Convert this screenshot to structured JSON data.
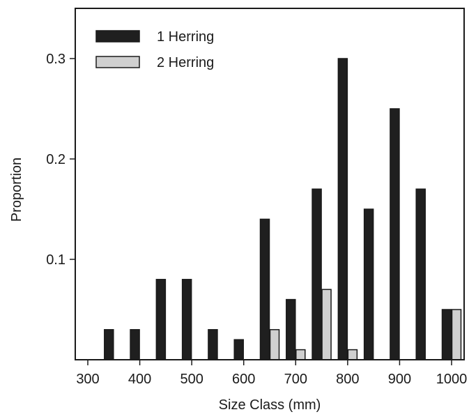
{
  "chart_data": {
    "type": "bar",
    "categories": [
      "350",
      "400",
      "450",
      "500",
      "550",
      "600",
      "650",
      "700",
      "750",
      "800",
      "850",
      "900",
      "950",
      "1000"
    ],
    "series": [
      {
        "name": "1 Herring",
        "color": "#1f1f1f",
        "values": [
          0.03,
          0.03,
          0.08,
          0.08,
          0.03,
          0.02,
          0.14,
          0.06,
          0.17,
          0.3,
          0.15,
          0.25,
          0.17,
          0.05
        ]
      },
      {
        "name": "2 Herring",
        "color": "#d0d0d0",
        "values": [
          0,
          0,
          0,
          0,
          0,
          0,
          0.03,
          0.01,
          0.07,
          0.01,
          0,
          0,
          0,
          0.05
        ]
      }
    ],
    "xlabel": "Size Class (mm)",
    "ylabel": "Proportion",
    "xlim": [
      300,
      1000
    ],
    "ylim": [
      0,
      0.35
    ],
    "x_ticks": [
      "300",
      "400",
      "500",
      "600",
      "700",
      "800",
      "900",
      "1000"
    ],
    "y_ticks": [
      "0.1",
      "0.2",
      "0.3"
    ],
    "legend_position": "top-left",
    "grid": false
  }
}
